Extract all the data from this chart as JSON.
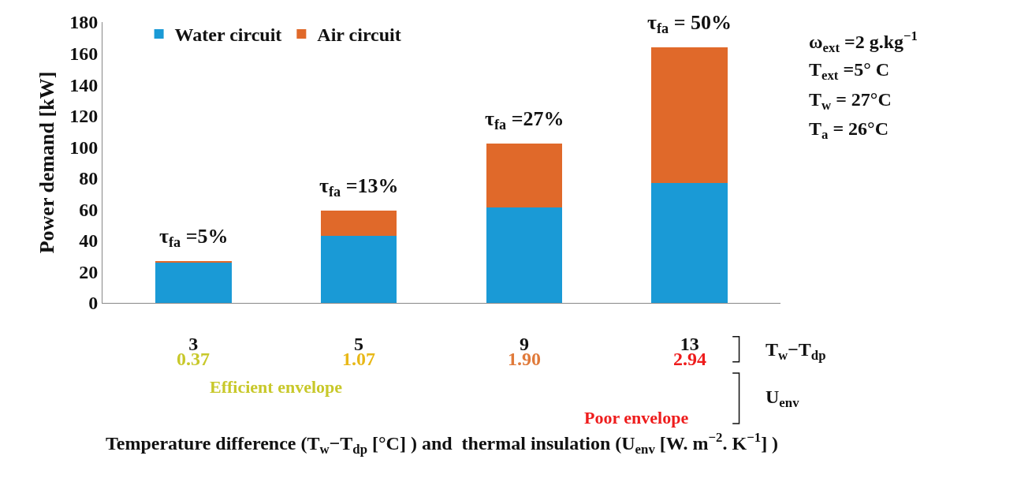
{
  "chart_data": {
    "type": "bar",
    "stacked": true,
    "categories": [
      "3",
      "5",
      "9",
      "13"
    ],
    "series": [
      {
        "name": "Water circuit",
        "color": "#1a9ad6",
        "values": [
          26,
          43,
          61,
          77
        ]
      },
      {
        "name": "Air circuit",
        "color": "#e0692a",
        "values": [
          1,
          16,
          41,
          87
        ]
      }
    ],
    "ylabel": "Power demand [kW]",
    "xlabel": "Temperature difference (T$_{w}$−T$_{dp}$ [°C] ) and  thermal insulation (U$_{env}$ [W. m$^{−2}$. K$^{−1}$] )",
    "ylim": [
      0,
      180
    ],
    "yticks": [
      0,
      20,
      40,
      60,
      80,
      100,
      120,
      140,
      160,
      180
    ],
    "legend": "top left",
    "annotations": [
      {
        "text": "τ$_{fa}$ =5%",
        "x": "3",
        "y": 27
      },
      {
        "text": "τ$_{fa}$ =13%",
        "x": "5",
        "y": 59
      },
      {
        "text": "τ$_{fa}$ =27%",
        "x": "9",
        "y": 102
      },
      {
        "text": "τ$_{fa}$ = 50%",
        "x": "13",
        "y": 164
      },
      "0.37",
      "1.07",
      "1.90",
      "2.94",
      "Efficient envelope",
      "Poor envelope",
      "T$_{w}$−T$_{dp}$",
      "U$_{env}$",
      "ω$_{ext}$ =2 g.kg$^{−1}$",
      "T$_{ext}$ =5° C",
      "T$_{w}$ = 27°C",
      "T$_{a}$ = 26°C"
    ]
  }
}
